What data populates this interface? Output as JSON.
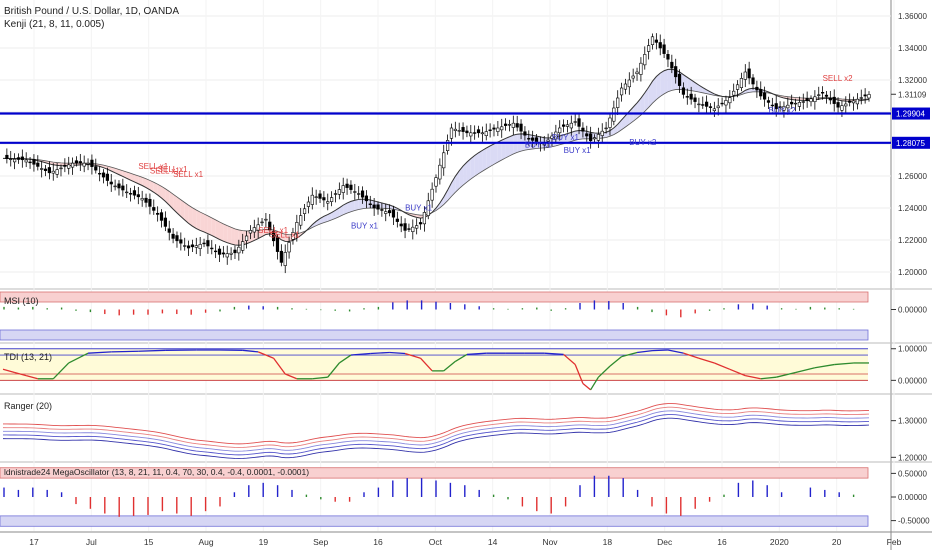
{
  "symbol": {
    "title": "British Pound / U.S. Dollar, 1D, OANDA",
    "indicator": "Kenji (21, 8, 11, 0.005)"
  },
  "colors": {
    "up_candle": "#ffffff",
    "down_candle": "#000000",
    "level_line": "#0000cc",
    "buy_text": "#3c3cc8",
    "sell_text": "#e04040",
    "green": "#2e8b2e",
    "red": "#e03030",
    "blue": "#2222cc",
    "pink_band": "#f8d0d0",
    "blue_band": "#d6d6f4",
    "yellow_band": "#fffbd8",
    "grid": "#eeeeee"
  },
  "chart_data": [
    {
      "type": "candlestick",
      "name": "price",
      "ylim": [
        1.19,
        1.37
      ],
      "yticks": [
        "1.20000",
        "1.22000",
        "1.24000",
        "1.26000",
        "1.28000",
        "1.30000",
        "1.32000",
        "1.34000",
        "1.36000"
      ],
      "x_labels": [
        "17",
        "Jul",
        "15",
        "Aug",
        "19",
        "Sep",
        "16",
        "Oct",
        "14",
        "Nov",
        "18",
        "Dec",
        "16",
        "2020",
        "20",
        "Feb"
      ],
      "levels": [
        {
          "value": 1.29904,
          "label": "1.29904"
        },
        {
          "value": 1.28075,
          "label": "1.28075"
        }
      ],
      "last_price": {
        "value": 1.31109,
        "label": "1.31109"
      },
      "close_path": [
        [
          0,
          1.271
        ],
        [
          6,
          1.27
        ],
        [
          12,
          1.262
        ],
        [
          18,
          1.268
        ],
        [
          22,
          1.268
        ],
        [
          28,
          1.255
        ],
        [
          32,
          1.25
        ],
        [
          36,
          1.246
        ],
        [
          40,
          1.236
        ],
        [
          44,
          1.221
        ],
        [
          48,
          1.215
        ],
        [
          52,
          1.218
        ],
        [
          56,
          1.211
        ],
        [
          60,
          1.212
        ],
        [
          64,
          1.226
        ],
        [
          68,
          1.233
        ],
        [
          72,
          1.206
        ],
        [
          76,
          1.231
        ],
        [
          80,
          1.248
        ],
        [
          84,
          1.244
        ],
        [
          88,
          1.254
        ],
        [
          92,
          1.249
        ],
        [
          96,
          1.24
        ],
        [
          100,
          1.237
        ],
        [
          104,
          1.226
        ],
        [
          108,
          1.23
        ],
        [
          112,
          1.259
        ],
        [
          116,
          1.29
        ],
        [
          120,
          1.287
        ],
        [
          124,
          1.287
        ],
        [
          128,
          1.29
        ],
        [
          132,
          1.293
        ],
        [
          136,
          1.283
        ],
        [
          140,
          1.28
        ],
        [
          144,
          1.29
        ],
        [
          148,
          1.294
        ],
        [
          152,
          1.282
        ],
        [
          156,
          1.29
        ],
        [
          160,
          1.315
        ],
        [
          164,
          1.325
        ],
        [
          168,
          1.347
        ],
        [
          172,
          1.333
        ],
        [
          176,
          1.311
        ],
        [
          180,
          1.305
        ],
        [
          184,
          1.302
        ],
        [
          188,
          1.309
        ],
        [
          192,
          1.325
        ],
        [
          196,
          1.31
        ],
        [
          200,
          1.302
        ],
        [
          204,
          1.305
        ],
        [
          208,
          1.307
        ],
        [
          212,
          1.312
        ],
        [
          216,
          1.303
        ],
        [
          220,
          1.307
        ],
        [
          224,
          1.311
        ]
      ],
      "signals": [
        {
          "text": "SELL x1",
          "x": 35,
          "y": 1.2645
        },
        {
          "text": "SELL x1",
          "x": 38,
          "y": 1.2615
        },
        {
          "text": "SELL x1",
          "x": 40,
          "y": 1.2625
        },
        {
          "text": "SELL x1",
          "x": 44,
          "y": 1.2595
        },
        {
          "text": "SELL x1",
          "x": 66,
          "y": 1.2245
        },
        {
          "text": "SELL x1",
          "x": 69,
          "y": 1.2215
        },
        {
          "text": "BUY x1",
          "x": 90,
          "y": 1.2272
        },
        {
          "text": "BUY x1",
          "x": 104,
          "y": 1.2385
        },
        {
          "text": "BUY x1",
          "x": 135,
          "y": 1.2778
        },
        {
          "text": "BUY x1",
          "x": 142,
          "y": 1.2825
        },
        {
          "text": "BUY x1",
          "x": 145,
          "y": 1.2745
        },
        {
          "text": "BUY x2",
          "x": 162,
          "y": 1.2795
        },
        {
          "text": "SELL x2",
          "x": 212,
          "y": 1.3195
        },
        {
          "text": "BUY x2",
          "x": 198,
          "y": 1.2993
        }
      ]
    },
    {
      "type": "histogram",
      "name": "MSI (10)",
      "title": "MSI (10)",
      "ylim": [
        -0.05,
        0.03
      ],
      "yticks": [
        "0.00000"
      ],
      "tick_values": [
        0
      ],
      "series": [
        {
          "name": "MSI",
          "values": [
            0.004,
            0.003,
            0.004,
            0.002,
            0.003,
            -0.002,
            -0.004,
            -0.007,
            -0.009,
            -0.008,
            -0.008,
            -0.006,
            -0.007,
            -0.008,
            -0.005,
            -0.003,
            0.004,
            0.006,
            0.005,
            0.004,
            0.002,
            0.001,
            -0.001,
            -0.002,
            -0.003,
            0.002,
            0.004,
            0.011,
            0.014,
            0.014,
            0.012,
            0.01,
            0.008,
            0.005,
            0.002,
            0.001,
            0.002,
            0.003,
            -0.002,
            0.002,
            0.01,
            0.014,
            0.013,
            0.01,
            0.004,
            -0.004,
            -0.009,
            -0.012,
            -0.006,
            -0.002,
            0.002,
            0.008,
            0.009,
            0.006,
            0.002,
            0.001,
            0.004,
            0.003,
            0.002,
            0.001
          ]
        }
      ]
    },
    {
      "type": "line",
      "name": "TDI (13, 21)",
      "title": "TDI (13, 21)",
      "ylim": [
        -0.4,
        1.15
      ],
      "yticks": [
        "1.00000",
        "0.00000"
      ],
      "tick_values": [
        1,
        0
      ],
      "series": [
        {
          "name": "TDI",
          "points": [
            [
              0,
              0.35
            ],
            [
              3,
              0.25
            ],
            [
              6,
              0.15
            ],
            [
              9,
              0.05
            ],
            [
              13,
              0.05
            ],
            [
              17,
              0.55
            ],
            [
              22,
              0.86
            ],
            [
              28,
              0.9
            ],
            [
              35,
              0.92
            ],
            [
              42,
              0.95
            ],
            [
              50,
              0.96
            ],
            [
              56,
              0.96
            ],
            [
              62,
              0.95
            ],
            [
              66,
              0.9
            ],
            [
              70,
              0.7
            ],
            [
              73,
              0.2
            ],
            [
              76,
              0.05
            ],
            [
              80,
              0.05
            ],
            [
              84,
              0.1
            ],
            [
              87,
              0.55
            ],
            [
              90,
              0.8
            ],
            [
              95,
              0.85
            ],
            [
              100,
              0.88
            ],
            [
              104,
              0.85
            ],
            [
              108,
              0.7
            ],
            [
              111,
              0.3
            ],
            [
              114,
              0.3
            ],
            [
              117,
              0.6
            ],
            [
              120,
              0.82
            ],
            [
              125,
              0.86
            ],
            [
              130,
              0.86
            ],
            [
              135,
              0.86
            ],
            [
              140,
              0.86
            ],
            [
              145,
              0.82
            ],
            [
              148,
              0.5
            ],
            [
              150,
              -0.1
            ],
            [
              152,
              -0.3
            ],
            [
              154,
              0.1
            ],
            [
              157,
              0.45
            ],
            [
              160,
              0.75
            ],
            [
              164,
              0.88
            ],
            [
              168,
              0.94
            ],
            [
              172,
              0.96
            ],
            [
              176,
              0.86
            ],
            [
              180,
              0.7
            ],
            [
              184,
              0.55
            ],
            [
              188,
              0.35
            ],
            [
              192,
              0.15
            ],
            [
              196,
              0.05
            ],
            [
              200,
              0.1
            ],
            [
              205,
              0.25
            ],
            [
              210,
              0.4
            ],
            [
              215,
              0.5
            ],
            [
              220,
              0.55
            ],
            [
              224,
              0.55
            ]
          ]
        }
      ]
    },
    {
      "type": "line",
      "name": "Ranger (20)",
      "title": "Ranger (20)",
      "ylim": [
        1.19,
        1.37
      ],
      "yticks": [
        "1.30000",
        "1.20000"
      ],
      "tick_values": [
        1.3,
        1.2
      ],
      "offsets": [
        0.02,
        0.01,
        0.0,
        -0.01,
        -0.02
      ]
    },
    {
      "type": "histogram",
      "name": "ldnistrade24 MegaOscillator (13, 8, 21, 11, 0.4, 70, 30, 0.4, -0.4, 0.0001, -0.0001)",
      "title": "ldnistrade24 MegaOscillator (13, 8, 21, 11, 0.4, 70, 30, 0.4, -0.4, 0.0001, -0.0001)",
      "ylim": [
        -0.72,
        0.72
      ],
      "yticks": [
        "0.50000",
        "0.00000",
        "-0.50000"
      ],
      "tick_values": [
        0.5,
        0,
        -0.5
      ],
      "series": [
        {
          "name": "Mega",
          "values": [
            0.2,
            0.15,
            0.2,
            0.15,
            0.1,
            -0.15,
            -0.25,
            -0.35,
            -0.42,
            -0.4,
            -0.38,
            -0.3,
            -0.35,
            -0.4,
            -0.3,
            -0.2,
            0.1,
            0.25,
            0.3,
            0.25,
            0.15,
            0.05,
            -0.05,
            -0.1,
            -0.1,
            0.1,
            0.2,
            0.35,
            0.4,
            0.4,
            0.35,
            0.3,
            0.25,
            0.15,
            0.05,
            -0.05,
            -0.2,
            -0.3,
            -0.35,
            -0.2,
            0.25,
            0.45,
            0.45,
            0.4,
            0.15,
            -0.2,
            -0.35,
            -0.4,
            -0.25,
            -0.1,
            0.05,
            0.3,
            0.35,
            0.25,
            0.1,
            0.0,
            0.2,
            0.15,
            0.1,
            0.05
          ]
        }
      ]
    }
  ]
}
